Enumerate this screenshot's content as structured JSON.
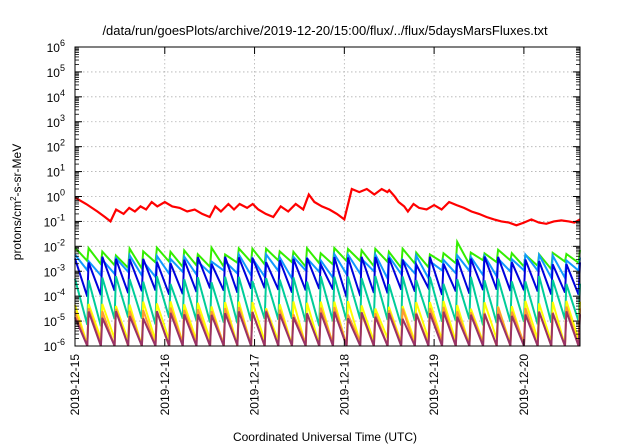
{
  "chart_data": {
    "type": "line",
    "title": "/data/run/goesPlots/archive/2019-12-20/15:00/flux/../flux/5daysMarsFluxes.txt",
    "xlabel": "Coordinated Universal Time (UTC)",
    "ylabel_parts": {
      "pre": "protons/cm",
      "sup": "2",
      "post": "-s-sr-MeV"
    },
    "x_scale": "time",
    "x_range": [
      "2019-12-15T00:00",
      "2019-12-20T15:00"
    ],
    "x_ticks": [
      "2019-12-15",
      "2019-12-16",
      "2019-12-17",
      "2019-12-18",
      "2019-12-19",
      "2019-12-20"
    ],
    "y_scale": "log",
    "ylim": [
      1e-06,
      1000000.0
    ],
    "y_ticks": [
      {
        "value": 1e-06,
        "base": "10",
        "exp": "-6"
      },
      {
        "value": 1e-05,
        "base": "10",
        "exp": "-5"
      },
      {
        "value": 0.0001,
        "base": "10",
        "exp": "-4"
      },
      {
        "value": 0.001,
        "base": "10",
        "exp": "-3"
      },
      {
        "value": 0.01,
        "base": "10",
        "exp": "-2"
      },
      {
        "value": 0.1,
        "base": "10",
        "exp": "-1"
      },
      {
        "value": 1.0,
        "base": "10",
        "exp": "0"
      },
      {
        "value": 10.0,
        "base": "10",
        "exp": "1"
      },
      {
        "value": 100.0,
        "base": "10",
        "exp": "2"
      },
      {
        "value": 1000.0,
        "base": "10",
        "exp": "3"
      },
      {
        "value": 10000.0,
        "base": "10",
        "exp": "4"
      },
      {
        "value": 100000.0,
        "base": "10",
        "exp": "5"
      },
      {
        "value": 1000000.0,
        "base": "10",
        "exp": "6"
      }
    ],
    "grid": true,
    "series": [
      {
        "color": "#ff0000",
        "width": 2.2,
        "x": [
          "2019-12-15T00:00",
          "2019-12-15T03:00",
          "2019-12-15T06:00",
          "2019-12-15T08:00",
          "2019-12-15T09:30",
          "2019-12-15T11:00",
          "2019-12-15T13:00",
          "2019-12-15T14:30",
          "2019-12-15T16:00",
          "2019-12-15T17:30",
          "2019-12-15T19:00",
          "2019-12-15T20:30",
          "2019-12-15T22:00",
          "2019-12-16T00:00",
          "2019-12-16T02:00",
          "2019-12-16T04:00",
          "2019-12-16T06:00",
          "2019-12-16T08:00",
          "2019-12-16T10:00",
          "2019-12-16T12:00",
          "2019-12-16T13:30",
          "2019-12-16T15:00",
          "2019-12-16T17:00",
          "2019-12-16T18:30",
          "2019-12-16T20:00",
          "2019-12-16T22:00",
          "2019-12-16T23:30",
          "2019-12-17T01:00",
          "2019-12-17T03:00",
          "2019-12-17T05:00",
          "2019-12-17T07:00",
          "2019-12-17T09:00",
          "2019-12-17T11:00",
          "2019-12-17T13:00",
          "2019-12-17T14:30",
          "2019-12-17T16:00",
          "2019-12-17T18:00",
          "2019-12-17T20:00",
          "2019-12-17T22:00",
          "2019-12-18T00:00",
          "2019-12-18T02:00",
          "2019-12-18T04:00",
          "2019-12-18T06:00",
          "2019-12-18T08:00",
          "2019-12-18T10:00",
          "2019-12-18T11:30",
          "2019-12-18T12:00",
          "2019-12-18T13:30",
          "2019-12-18T14:30",
          "2019-12-18T16:00",
          "2019-12-18T17:00",
          "2019-12-18T18:30",
          "2019-12-18T20:00",
          "2019-12-18T22:00",
          "2019-12-19T00:00",
          "2019-12-19T02:00",
          "2019-12-19T04:00",
          "2019-12-19T06:00",
          "2019-12-19T08:00",
          "2019-12-19T10:00",
          "2019-12-19T12:00",
          "2019-12-19T14:00",
          "2019-12-19T16:00",
          "2019-12-19T18:00",
          "2019-12-19T20:00",
          "2019-12-19T22:00",
          "2019-12-20T00:00",
          "2019-12-20T02:00",
          "2019-12-20T04:00",
          "2019-12-20T06:00",
          "2019-12-20T08:00",
          "2019-12-20T10:00",
          "2019-12-20T12:00",
          "2019-12-20T13:30",
          "2019-12-20T15:00"
        ],
        "y": [
          0.9,
          0.5,
          0.25,
          0.15,
          0.1,
          0.3,
          0.2,
          0.35,
          0.25,
          0.4,
          0.3,
          0.6,
          0.4,
          0.6,
          0.4,
          0.35,
          0.25,
          0.3,
          0.2,
          0.15,
          0.4,
          0.25,
          0.5,
          0.3,
          0.5,
          0.35,
          0.5,
          0.3,
          0.2,
          0.15,
          0.4,
          0.25,
          0.5,
          0.3,
          1.2,
          0.6,
          0.4,
          0.3,
          0.2,
          0.12,
          2.0,
          1.5,
          2.0,
          1.2,
          2.0,
          1.5,
          1.8,
          1.0,
          0.6,
          0.4,
          0.25,
          0.5,
          0.35,
          0.3,
          0.45,
          0.3,
          0.6,
          0.45,
          0.35,
          0.25,
          0.2,
          0.15,
          0.12,
          0.1,
          0.09,
          0.07,
          0.09,
          0.12,
          0.09,
          0.08,
          0.1,
          0.11,
          0.1,
          0.09,
          0.12
        ]
      },
      {
        "color": "#33ee00",
        "width": 2.0,
        "x": [
          "2019-12-15T00:00",
          "2019-12-20T15:00"
        ],
        "y": [
          0.005,
          0.003
        ],
        "sawtooth": {
          "count": 37,
          "peak": 0.007,
          "trough": 0.002,
          "spikes": [
            [
              "2019-12-19T05:00",
              0.015
            ],
            [
              "2019-12-17T01:00",
              0.008
            ]
          ]
        }
      },
      {
        "color": "#1199ff",
        "width": 2.0,
        "x": [
          "2019-12-15T00:00",
          "2019-12-20T15:00"
        ],
        "y": [
          0.002,
          0.0015
        ],
        "sawtooth": {
          "count": 37,
          "peak": 0.004,
          "trough": 0.0008
        }
      },
      {
        "color": "#0000dd",
        "width": 2.0,
        "x": [
          "2019-12-15T00:00",
          "2019-12-20T15:00"
        ],
        "y": [
          0.0008,
          0.0005
        ],
        "sawtooth": {
          "count": 37,
          "peak": 0.003,
          "trough": 0.00015
        }
      },
      {
        "color": "#00cc99",
        "width": 2.0,
        "x": [
          "2019-12-15T00:00",
          "2019-12-20T15:00"
        ],
        "y": [
          8e-05,
          5e-05
        ],
        "sawtooth": {
          "count": 37,
          "peak": 0.0005,
          "trough": 1e-05
        }
      },
      {
        "color": "#ffff00",
        "width": 2.0,
        "x": [
          "2019-12-15T00:00",
          "2019-12-20T15:00"
        ],
        "y": [
          1e-05,
          1e-05
        ],
        "sawtooth": {
          "count": 37,
          "peak": 5e-05,
          "trough": 1.5e-06
        }
      },
      {
        "color": "#ff9933",
        "width": 2.0,
        "x": [
          "2019-12-15T00:00",
          "2019-12-20T15:00"
        ],
        "y": [
          5e-06,
          5e-06
        ],
        "sawtooth": {
          "count": 37,
          "peak": 3e-05,
          "trough": 1e-06
        }
      },
      {
        "color": "#993366",
        "width": 2.0,
        "x": [
          "2019-12-15T00:00",
          "2019-12-20T15:00"
        ],
        "y": [
          2e-06,
          2e-06
        ],
        "sawtooth": {
          "count": 37,
          "peak": 2e-05,
          "trough": 8e-07
        }
      }
    ]
  }
}
